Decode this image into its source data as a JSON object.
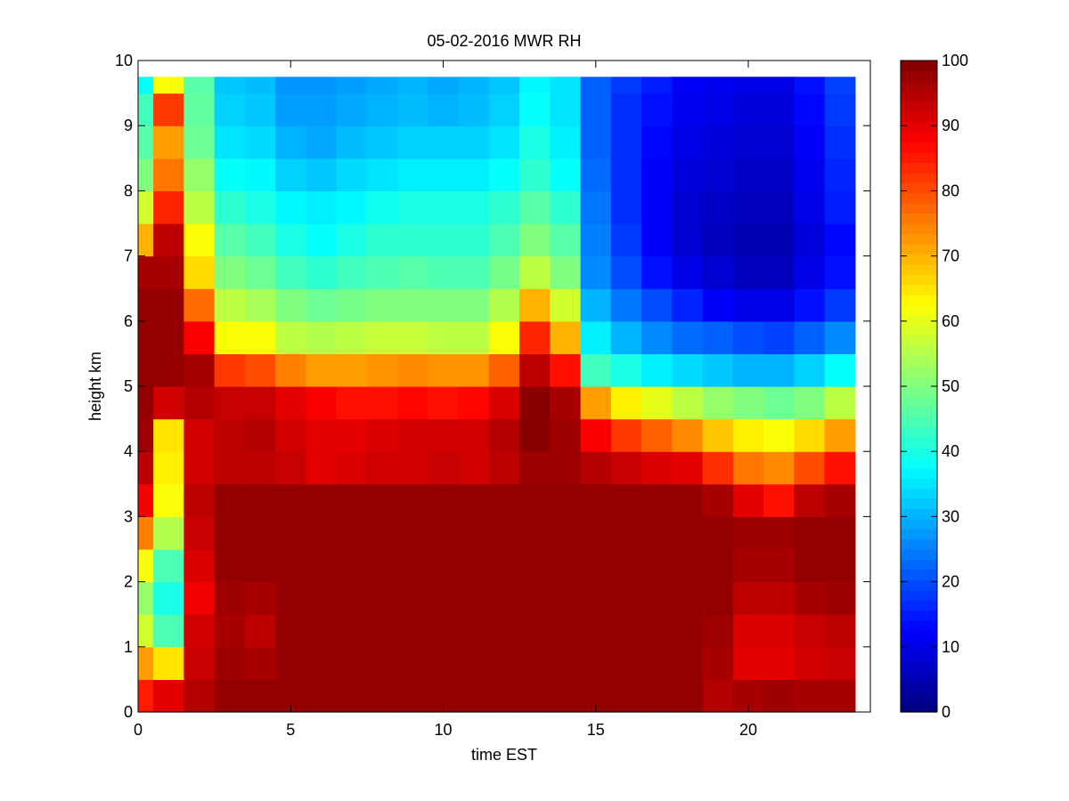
{
  "chart_data": {
    "type": "heatmap",
    "title": "05-02-2016 MWR RH",
    "xlabel": "time EST",
    "ylabel": "height km",
    "xlim": [
      0,
      24
    ],
    "ylim": [
      0,
      10
    ],
    "x_ticks": [
      0,
      5,
      10,
      15,
      20
    ],
    "y_ticks": [
      0,
      1,
      2,
      3,
      4,
      5,
      6,
      7,
      8,
      9,
      10
    ],
    "colorbar": {
      "min": 0,
      "max": 100,
      "ticks": [
        0,
        10,
        20,
        30,
        40,
        50,
        60,
        70,
        80,
        90,
        100
      ],
      "colormap": "jet"
    },
    "x": [
      0,
      1,
      2,
      3,
      4,
      5,
      6,
      7,
      8,
      9,
      10,
      11,
      12,
      13,
      14,
      15,
      16,
      17,
      18,
      19,
      20,
      21,
      22,
      23
    ],
    "heights": [
      0,
      0.5,
      1,
      1.5,
      2,
      2.5,
      3,
      3.5,
      4,
      4.5,
      5,
      5.5,
      6,
      6.5,
      7,
      7.5,
      8,
      8.5,
      9,
      9.5
    ],
    "z": [
      [
        85,
        90,
        95,
        98,
        98,
        98,
        98,
        98,
        98,
        98,
        98,
        98,
        98,
        98,
        98,
        98,
        98,
        98,
        98,
        95,
        96,
        97,
        96,
        96
      ],
      [
        72,
        65,
        93,
        97,
        96,
        98,
        98,
        98,
        98,
        98,
        98,
        98,
        98,
        98,
        98,
        98,
        98,
        98,
        98,
        96,
        90,
        90,
        92,
        93
      ],
      [
        58,
        45,
        92,
        96,
        94,
        98,
        98,
        98,
        98,
        98,
        98,
        98,
        98,
        98,
        98,
        98,
        98,
        98,
        98,
        97,
        91,
        91,
        93,
        94
      ],
      [
        52,
        40,
        89,
        97,
        96,
        98,
        98,
        98,
        98,
        98,
        98,
        98,
        98,
        98,
        98,
        98,
        98,
        98,
        98,
        98,
        94,
        94,
        96,
        97
      ],
      [
        62,
        45,
        91,
        98,
        98,
        98,
        98,
        98,
        98,
        98,
        98,
        98,
        98,
        98,
        98,
        98,
        98,
        98,
        98,
        98,
        96,
        96,
        98,
        98
      ],
      [
        75,
        55,
        93,
        98,
        98,
        98,
        98,
        98,
        98,
        98,
        98,
        98,
        98,
        98,
        98,
        98,
        98,
        98,
        98,
        98,
        97,
        97,
        98,
        98
      ],
      [
        88,
        62,
        94,
        98,
        98,
        98,
        98,
        98,
        98,
        98,
        98,
        98,
        98,
        98,
        98,
        98,
        98,
        98,
        98,
        96,
        90,
        86,
        94,
        96
      ],
      [
        94,
        64,
        92,
        94,
        94,
        93,
        90,
        91,
        92,
        92,
        93,
        92,
        94,
        97,
        97,
        95,
        93,
        91,
        90,
        83,
        76,
        74,
        80,
        86
      ],
      [
        97,
        65,
        92,
        94,
        95,
        92,
        90,
        90,
        91,
        92,
        92,
        92,
        95,
        99,
        97,
        88,
        82,
        78,
        74,
        68,
        64,
        62,
        66,
        72
      ],
      [
        98,
        92,
        95,
        93,
        93,
        90,
        88,
        86,
        86,
        87,
        86,
        87,
        91,
        99,
        96,
        72,
        64,
        60,
        56,
        52,
        50,
        48,
        50,
        56
      ],
      [
        98,
        98,
        96,
        82,
        80,
        75,
        72,
        72,
        73,
        74,
        73,
        73,
        78,
        94,
        86,
        44,
        40,
        36,
        34,
        32,
        30,
        30,
        33,
        38
      ],
      [
        98,
        98,
        88,
        62,
        62,
        56,
        55,
        56,
        57,
        57,
        56,
        56,
        62,
        84,
        70,
        36,
        30,
        26,
        23,
        22,
        20,
        19,
        22,
        26
      ],
      [
        98,
        98,
        77,
        56,
        54,
        50,
        48,
        49,
        50,
        50,
        50,
        50,
        55,
        70,
        58,
        30,
        24,
        20,
        16,
        12,
        10,
        10,
        14,
        18
      ],
      [
        96,
        96,
        66,
        50,
        48,
        44,
        42,
        44,
        45,
        46,
        45,
        45,
        49,
        56,
        50,
        26,
        20,
        14,
        10,
        8,
        6,
        6,
        10,
        14
      ],
      [
        70,
        94,
        62,
        46,
        44,
        40,
        38,
        40,
        42,
        42,
        42,
        42,
        45,
        50,
        46,
        25,
        18,
        12,
        8,
        6,
        5,
        5,
        9,
        13
      ],
      [
        58,
        84,
        56,
        42,
        40,
        37,
        36,
        37,
        39,
        40,
        40,
        40,
        42,
        46,
        42,
        24,
        17,
        12,
        8,
        7,
        6,
        6,
        10,
        15
      ],
      [
        50,
        76,
        52,
        38,
        37,
        33,
        32,
        34,
        35,
        36,
        36,
        36,
        38,
        42,
        38,
        23,
        17,
        12,
        9,
        8,
        7,
        7,
        11,
        16
      ],
      [
        46,
        72,
        48,
        35,
        34,
        30,
        29,
        31,
        32,
        33,
        33,
        33,
        35,
        40,
        36,
        22,
        17,
        13,
        10,
        9,
        8,
        8,
        12,
        17
      ],
      [
        44,
        82,
        47,
        33,
        32,
        28,
        28,
        29,
        30,
        31,
        30,
        31,
        33,
        38,
        35,
        22,
        17,
        14,
        11,
        10,
        9,
        9,
        13,
        18
      ],
      [
        38,
        62,
        46,
        32,
        31,
        27,
        27,
        28,
        29,
        30,
        29,
        30,
        32,
        37,
        35,
        22,
        18,
        15,
        12,
        11,
        10,
        10,
        14,
        19
      ]
    ]
  }
}
